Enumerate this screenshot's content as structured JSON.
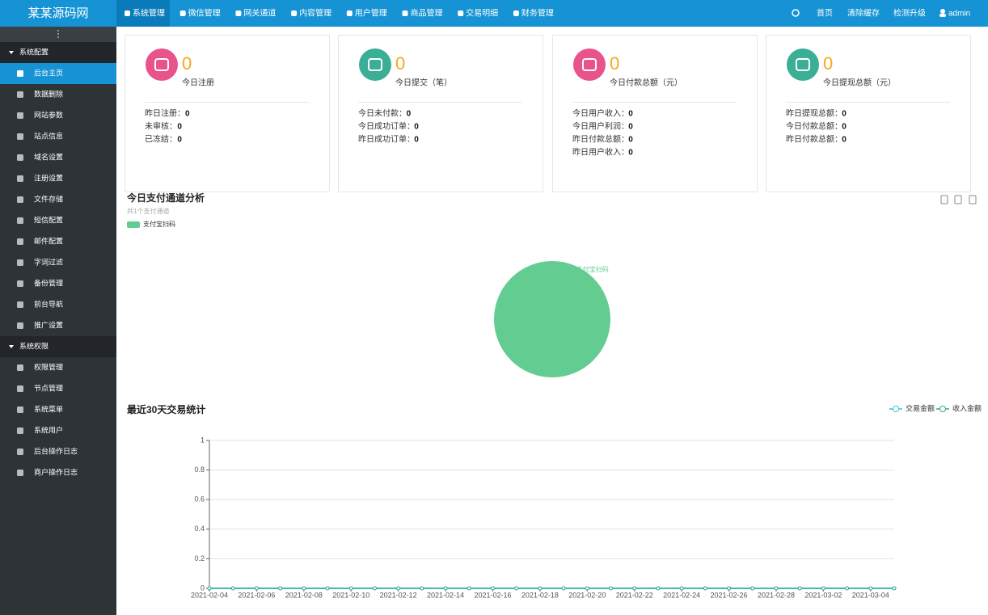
{
  "header": {
    "logo": "某某源码网",
    "nav": [
      "系统管理",
      "微信管理",
      "网关通道",
      "内容管理",
      "用户管理",
      "商品管理",
      "交易明细",
      "财务管理"
    ],
    "links": [
      "首页",
      "清除缓存",
      "检测升级"
    ],
    "user": "admin"
  },
  "sidebar": {
    "groups": [
      {
        "title": "系统配置",
        "items": [
          "后台主页",
          "数据删除",
          "网站参数",
          "站点信息",
          "域名设置",
          "注册设置",
          "文件存储",
          "短信配置",
          "邮件配置",
          "字词过滤",
          "备份管理",
          "前台导航",
          "推广设置"
        ]
      },
      {
        "title": "系统权限",
        "items": [
          "权限管理",
          "节点管理",
          "系统菜单",
          "系统用户",
          "后台操作日志",
          "商户操作日志"
        ]
      }
    ]
  },
  "cards": [
    {
      "count": 0,
      "label": "今日注册",
      "color": "#e8548a",
      "stats": [
        {
          "label": "昨日注册：",
          "value": 0
        },
        {
          "label": "未审核：",
          "value": 0
        },
        {
          "label": "已冻结：",
          "value": 0
        }
      ]
    },
    {
      "count": 0,
      "label": "今日提交（笔）",
      "color": "#3bae96",
      "stats": [
        {
          "label": "今日未付款：",
          "value": 0
        },
        {
          "label": "今日成功订单：",
          "value": 0
        },
        {
          "label": "昨日成功订单：",
          "value": 0
        }
      ]
    },
    {
      "count": 0,
      "label": "今日付款总额（元）",
      "color": "#e8548a",
      "stats": [
        {
          "label": "今日用户收入：",
          "value": 0
        },
        {
          "label": "今日用户利润：",
          "value": 0
        },
        {
          "label": "昨日付款总额：",
          "value": 0
        },
        {
          "label": "昨日用户收入：",
          "value": 0
        }
      ]
    },
    {
      "count": 0,
      "label": "今日提现总额（元）",
      "color": "#3bae96",
      "stats": [
        {
          "label": "昨日提现总额：",
          "value": 0
        },
        {
          "label": "今日付款总额：",
          "value": 0
        },
        {
          "label": "昨日付款总额：",
          "value": 0
        }
      ]
    }
  ],
  "chart_data": [
    {
      "type": "pie",
      "title": "今日支付通道分析",
      "subtitle": "共1个支付通道",
      "categories": [
        "支付宝扫码"
      ],
      "values": [
        1
      ],
      "colors": [
        "#63cd91"
      ]
    },
    {
      "type": "line",
      "title": "最近30天交易统计",
      "categories": [
        "2021-02-04",
        null,
        "2021-02-06",
        null,
        "2021-02-08",
        null,
        "2021-02-10",
        null,
        "2021-02-12",
        null,
        "2021-02-14",
        null,
        "2021-02-16",
        null,
        "2021-02-18",
        null,
        "2021-02-20",
        null,
        "2021-02-22",
        null,
        "2021-02-24",
        null,
        "2021-02-26",
        null,
        "2021-02-28",
        null,
        "2021-03-02",
        null,
        "2021-03-04",
        null
      ],
      "series": [
        {
          "name": "交易金额",
          "color": "#36c6d3",
          "values": [
            0,
            0,
            0,
            0,
            0,
            0,
            0,
            0,
            0,
            0,
            0,
            0,
            0,
            0,
            0,
            0,
            0,
            0,
            0,
            0,
            0,
            0,
            0,
            0,
            0,
            0,
            0,
            0,
            0,
            0
          ]
        },
        {
          "name": "收入金额",
          "color": "#2fa98c",
          "values": [
            0,
            0,
            0,
            0,
            0,
            0,
            0,
            0,
            0,
            0,
            0,
            0,
            0,
            0,
            0,
            0,
            0,
            0,
            0,
            0,
            0,
            0,
            0,
            0,
            0,
            0,
            0,
            0,
            0,
            0
          ]
        }
      ],
      "ylim": [
        0,
        1
      ],
      "yticks": [
        0,
        0.2,
        0.4,
        0.6,
        0.8,
        1
      ],
      "grid": true
    }
  ]
}
